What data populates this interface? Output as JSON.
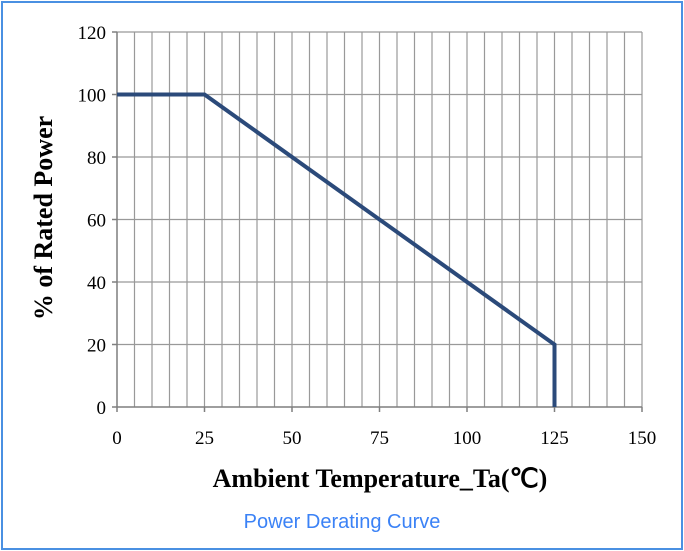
{
  "caption": "Power Derating Curve",
  "chart_data": {
    "type": "line",
    "title": "",
    "xlabel": "Ambient  Temperature_Ta(℃)",
    "ylabel": "% of Rated Power",
    "xlim": [
      0,
      150
    ],
    "ylim": [
      0,
      120
    ],
    "x_ticks": [
      0,
      25,
      50,
      75,
      100,
      125,
      150
    ],
    "y_ticks": [
      0,
      20,
      40,
      60,
      80,
      100,
      120
    ],
    "x_tick_labels": [
      "0",
      "25",
      "50",
      "75",
      "100",
      "125",
      "150"
    ],
    "y_tick_labels": [
      "0",
      "20",
      "40",
      "60",
      "80",
      "100",
      "120"
    ],
    "x_minor_step": 5,
    "grid": true,
    "series": [
      {
        "x": [
          0,
          25,
          125,
          125
        ],
        "y": [
          100,
          100,
          20,
          0
        ]
      }
    ],
    "colors": {
      "line": "#2b4a7a",
      "grid": "#999999",
      "axis": "#7f7f7f"
    }
  }
}
